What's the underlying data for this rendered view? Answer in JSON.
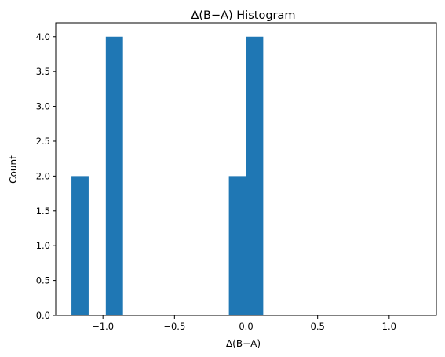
{
  "chart_data": {
    "type": "bar",
    "title": "Δ(B−A) Histogram",
    "xlabel": "Δ(B−A)",
    "ylabel": "Count",
    "xlim": [
      -1.33,
      1.33
    ],
    "ylim": [
      0,
      4.2
    ],
    "xticks": [
      -1.0,
      -0.5,
      0.0,
      0.5,
      1.0
    ],
    "xtick_labels": [
      "−1.0",
      "−0.5",
      "0.0",
      "0.5",
      "1.0"
    ],
    "yticks": [
      0.0,
      0.5,
      1.0,
      1.5,
      2.0,
      2.5,
      3.0,
      3.5,
      4.0
    ],
    "ytick_labels": [
      "0.0",
      "0.5",
      "1.0",
      "1.5",
      "2.0",
      "2.5",
      "3.0",
      "3.5",
      "4.0"
    ],
    "bins": [
      {
        "x0": -1.22,
        "x1": -1.1,
        "count": 2
      },
      {
        "x0": -0.98,
        "x1": -0.86,
        "count": 4
      },
      {
        "x0": -0.12,
        "x1": 0.0,
        "count": 2
      },
      {
        "x0": 0.0,
        "x1": 0.12,
        "count": 4
      }
    ],
    "bar_color": "#1f77b4",
    "grid": false,
    "legend": "none"
  }
}
